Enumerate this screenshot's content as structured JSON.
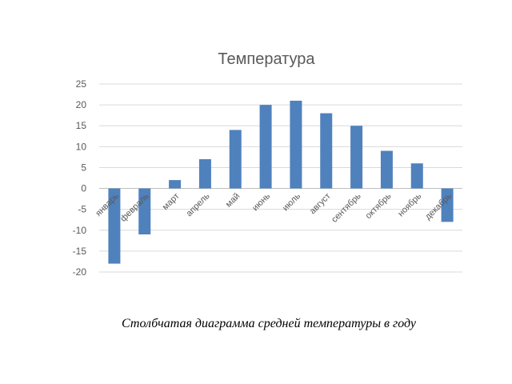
{
  "chart_data": {
    "type": "bar",
    "title": "Температура",
    "categories": [
      "январь",
      "февраль",
      "март",
      "апрель",
      "май",
      "июнь",
      "июль",
      "август",
      "сентябрь",
      "октябрь",
      "ноябрь",
      "декабрь"
    ],
    "values": [
      -18,
      -11,
      2,
      7,
      14,
      20,
      21,
      18,
      15,
      9,
      6,
      -8
    ],
    "ylim": [
      -20,
      25
    ],
    "yticks": [
      25,
      20,
      15,
      10,
      5,
      0,
      -5,
      -10,
      -15,
      -20
    ],
    "ytick_labels": [
      "25",
      "20",
      "15",
      "10",
      "5",
      "0",
      "-5",
      "-10",
      "-15",
      "-20"
    ],
    "xlabel": "",
    "ylabel": "",
    "grid": true,
    "legend": "none",
    "bar_color": "#4f81bd"
  },
  "caption": "Столбчатая диаграмма средней температуры в году"
}
